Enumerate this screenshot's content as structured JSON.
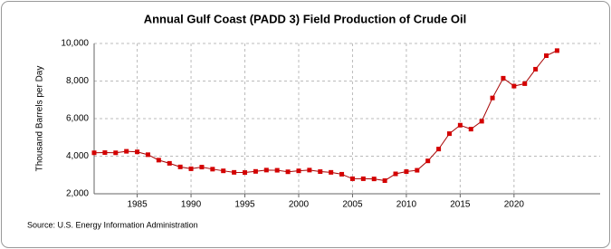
{
  "chart_data": {
    "type": "line",
    "title": "Annual Gulf Coast (PADD 3) Field Production of Crude Oil",
    "y_label": "Thousand Barrels per Day",
    "source": "Source: U.S. Energy Information Administration",
    "x": [
      1981,
      1982,
      1983,
      1984,
      1985,
      1986,
      1987,
      1988,
      1989,
      1990,
      1991,
      1992,
      1993,
      1994,
      1995,
      1996,
      1997,
      1998,
      1999,
      2000,
      2001,
      2002,
      2003,
      2004,
      2005,
      2006,
      2007,
      2008,
      2009,
      2010,
      2011,
      2012,
      2013,
      2014,
      2015,
      2016,
      2017,
      2018,
      2019,
      2020,
      2021,
      2022,
      2023,
      2024
    ],
    "values": [
      4180,
      4190,
      4180,
      4260,
      4230,
      4080,
      3790,
      3620,
      3430,
      3330,
      3420,
      3310,
      3220,
      3140,
      3130,
      3190,
      3260,
      3250,
      3170,
      3220,
      3260,
      3180,
      3140,
      3040,
      2800,
      2800,
      2790,
      2700,
      3060,
      3180,
      3250,
      3750,
      4380,
      5200,
      5650,
      5440,
      5860,
      7100,
      8150,
      7730,
      7860,
      8630,
      9350,
      9620
    ],
    "color": "#a50000",
    "marker_color": "#d40000",
    "xlim": [
      1981,
      2028
    ],
    "xticks": [
      1985,
      1990,
      1995,
      2000,
      2005,
      2010,
      2015,
      2020
    ],
    "ylim": [
      2000,
      10000
    ],
    "yticks": [
      {
        "value": 2000,
        "label": "2,000"
      },
      {
        "value": 4000,
        "label": "4,000"
      },
      {
        "value": 6000,
        "label": "6,000"
      },
      {
        "value": 8000,
        "label": "8,000"
      },
      {
        "value": 10000,
        "label": "10,000"
      }
    ],
    "grid": true
  }
}
